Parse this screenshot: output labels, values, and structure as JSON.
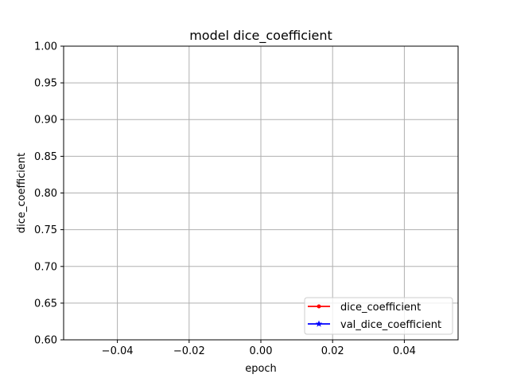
{
  "chart_data": {
    "type": "line",
    "title": "model dice_coefficient",
    "xlabel": "epoch",
    "ylabel": "dice_coefficient",
    "xlim": [
      -0.055,
      0.055
    ],
    "ylim": [
      0.6,
      1.0
    ],
    "x_ticks": [
      -0.04,
      -0.02,
      0.0,
      0.02,
      0.04
    ],
    "x_tick_labels": [
      "−0.04",
      "−0.02",
      "0.00",
      "0.02",
      "0.04"
    ],
    "y_ticks": [
      0.6,
      0.65,
      0.7,
      0.75,
      0.8,
      0.85,
      0.9,
      0.95,
      1.0
    ],
    "y_tick_labels": [
      "0.60",
      "0.65",
      "0.70",
      "0.75",
      "0.80",
      "0.85",
      "0.90",
      "0.95",
      "1.00"
    ],
    "grid": true,
    "legend_position": "lower-right",
    "series": [
      {
        "name": "dice_coefficient",
        "color": "#ff0000",
        "marker": "dot",
        "x": [],
        "values": []
      },
      {
        "name": "val_dice_coefficient",
        "color": "#0000ff",
        "marker": "star",
        "x": [],
        "values": []
      }
    ]
  }
}
